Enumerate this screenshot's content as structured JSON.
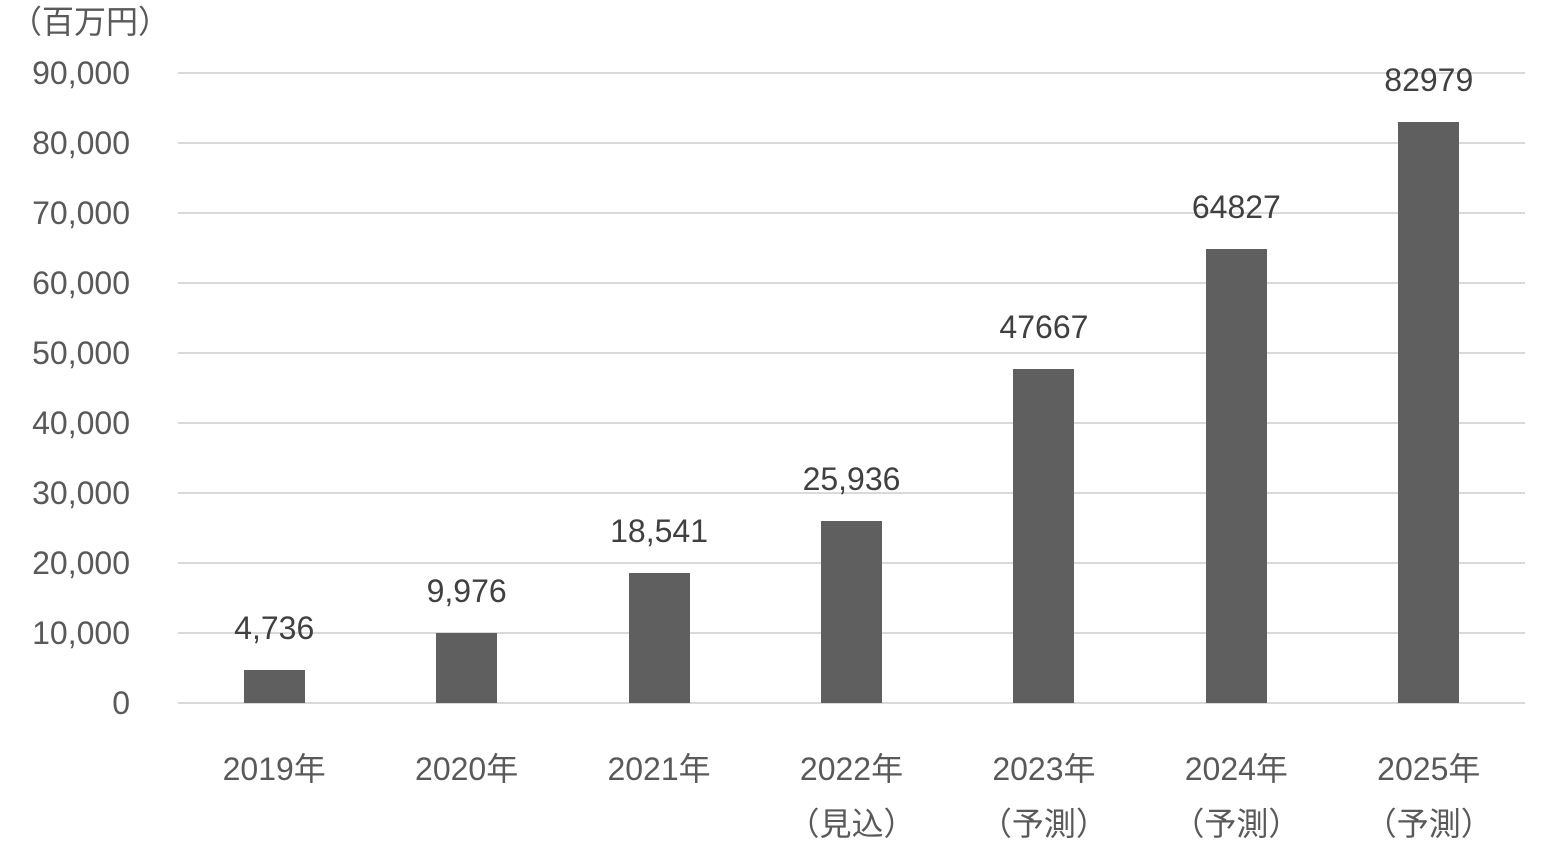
{
  "chart": {
    "unit_label": "（百万円）",
    "colors": {
      "background": "#FFFFFF",
      "bar": "#5F5F5F",
      "gridline": "#D9D9D9",
      "data_label": "#404040",
      "axis_text": "#595959"
    }
  },
  "chart_data": {
    "type": "bar",
    "title": "",
    "ylabel_unit": "（百万円）",
    "categories": [
      {
        "year": "2019年",
        "note": ""
      },
      {
        "year": "2020年",
        "note": ""
      },
      {
        "year": "2021年",
        "note": ""
      },
      {
        "year": "2022年",
        "note": "（見込）"
      },
      {
        "year": "2023年",
        "note": "（予測）"
      },
      {
        "year": "2024年",
        "note": "（予測）"
      },
      {
        "year": "2025年",
        "note": "（予測）"
      }
    ],
    "values": [
      4736,
      9976,
      18541,
      25936,
      47667,
      64827,
      82979
    ],
    "value_labels": [
      "4,736",
      "9,976",
      "18,541",
      "25,936",
      "47667",
      "64827",
      "82979"
    ],
    "ylim": [
      0,
      90000
    ],
    "ytick_step": 10000,
    "ytick_labels": [
      "0",
      "10,000",
      "20,000",
      "30,000",
      "40,000",
      "50,000",
      "60,000",
      "70,000",
      "80,000",
      "90,000"
    ],
    "grid": true,
    "legend": "none"
  }
}
